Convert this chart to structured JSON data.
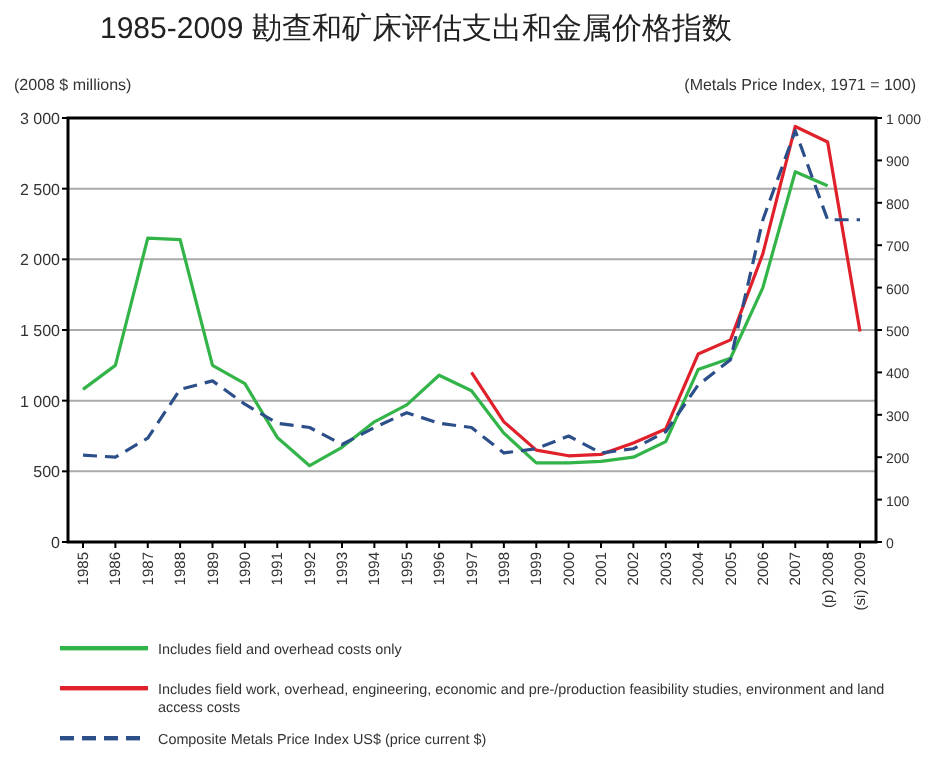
{
  "chart_data": {
    "type": "line",
    "title": "1985-2009 勘查和矿床评估支出和金属价格指数",
    "ylabel": "(2008 $ millions)",
    "y2label": "(Metals Price Index, 1971 = 100)",
    "categories": [
      "1985",
      "1986",
      "1987",
      "1988",
      "1989",
      "1990",
      "1991",
      "1992",
      "1993",
      "1994",
      "1995",
      "1996",
      "1997",
      "1998",
      "1999",
      "2000",
      "2001",
      "2002",
      "2003",
      "2004",
      "2005",
      "2006",
      "2007",
      "(p) 2008",
      "(si) 2009"
    ],
    "ylim": [
      0,
      3000
    ],
    "yticks": [
      0,
      {
        "value": 500,
        "label": "500"
      },
      {
        "value": 1000,
        "label": "1 000"
      },
      {
        "value": 1500,
        "label": "1 500"
      },
      {
        "value": 2000,
        "label": "2 000"
      },
      {
        "value": 2500,
        "label": "2 500"
      },
      {
        "value": 3000,
        "label": "3 000"
      }
    ],
    "y2lim": [
      0,
      1000
    ],
    "y2ticks": [
      0,
      100,
      200,
      300,
      400,
      500,
      600,
      700,
      800,
      900,
      {
        "value": 1000,
        "label": "1 000"
      }
    ],
    "grid": "y",
    "legend": "bottom",
    "marker": "none",
    "series": [
      {
        "name": "Includes field and overhead costs only",
        "color": "#33b449",
        "line_style": "solid",
        "values": [
          1080,
          1250,
          2150,
          2140,
          1250,
          1120,
          740,
          540,
          670,
          850,
          970,
          1180,
          1070,
          770,
          560,
          560,
          570,
          600,
          710,
          1220,
          1300,
          1800,
          2620,
          2520,
          null
        ]
      },
      {
        "name": "Includes field work, overhead, engineering, economic and pre-/production feasibility studies, environment and land access costs",
        "color": "#e0202a",
        "line_style": "solid",
        "values": [
          null,
          null,
          null,
          null,
          null,
          null,
          null,
          null,
          null,
          null,
          null,
          null,
          1200,
          850,
          650,
          610,
          620,
          700,
          800,
          1330,
          1430,
          2040,
          2940,
          2830,
          1490
        ]
      },
      {
        "name": "Composite Metals Price Index US$ (price current $)",
        "color": "#2c4f8a",
        "line_style": "dashed",
        "axis": "y2",
        "values": [
          205,
          200,
          245,
          360,
          380,
          325,
          280,
          270,
          230,
          270,
          305,
          280,
          270,
          210,
          220,
          250,
          210,
          220,
          260,
          370,
          430,
          760,
          970,
          760,
          760
        ]
      }
    ]
  }
}
